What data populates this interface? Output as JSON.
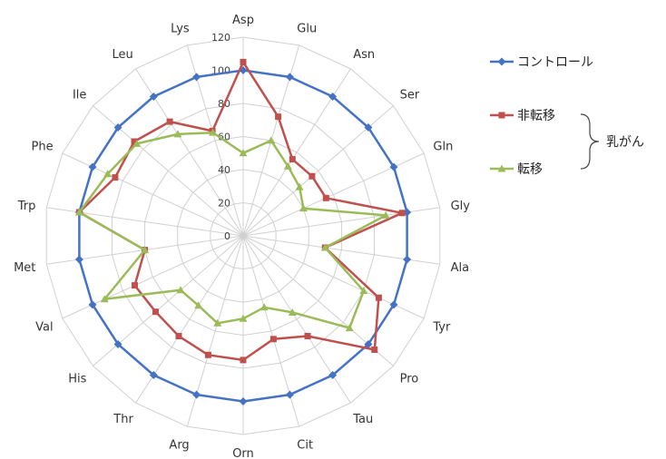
{
  "chart_data": {
    "type": "radar",
    "categories": [
      "Asp",
      "Glu",
      "Asn",
      "Ser",
      "Gln",
      "Gly",
      "Ala",
      "Tyr",
      "Pro",
      "Tau",
      "Cit",
      "Orn",
      "Arg",
      "Thr",
      "His",
      "Val",
      "Met",
      "Trp",
      "Phe",
      "Ile",
      "Leu",
      "Lys"
    ],
    "rlim": [
      0,
      120
    ],
    "rticks": [
      0,
      20,
      40,
      60,
      80,
      100,
      120
    ],
    "grid": true,
    "legend_position": "right",
    "series": [
      {
        "name": "コントロール",
        "color": "#4472C4",
        "marker": "diamond",
        "values": [
          100,
          100,
          100,
          100,
          100,
          100,
          100,
          100,
          100,
          100,
          100,
          100,
          100,
          100,
          100,
          100,
          100,
          100,
          100,
          100,
          100,
          100
        ]
      },
      {
        "name": "非転移",
        "color": "#C0504D",
        "marker": "square",
        "values": [
          105,
          75,
          55,
          55,
          55,
          97,
          50,
          90,
          105,
          72,
          65,
          75,
          75,
          72,
          70,
          72,
          60,
          100,
          85,
          87,
          82,
          66
        ]
      },
      {
        "name": "転移",
        "color": "#9BBB59",
        "marker": "triangle",
        "values": [
          50,
          60,
          50,
          45,
          40,
          87,
          50,
          80,
          85,
          55,
          45,
          50,
          55,
          50,
          50,
          92,
          60,
          100,
          90,
          85,
          73,
          65
        ]
      }
    ],
    "bracket_label": "乳がん",
    "bracket_groups": [
      "非転移",
      "転移"
    ]
  }
}
